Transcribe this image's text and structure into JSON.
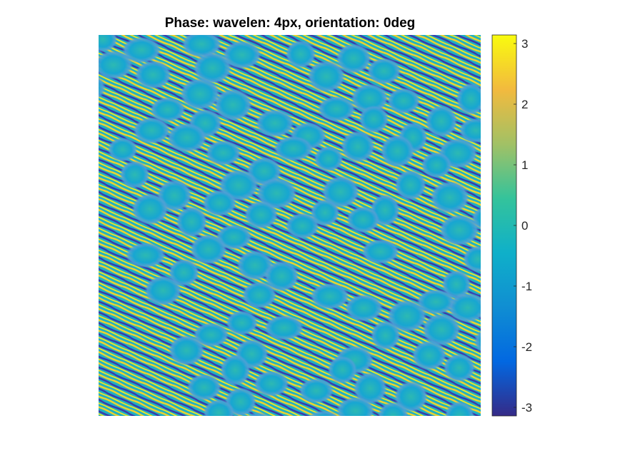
{
  "chart_data": {
    "type": "heatmap",
    "title": "Phase: wavelen: 4px, orientation: 0deg",
    "xlabel": "",
    "ylabel": "",
    "colorbar": {
      "colormap": "parula",
      "range": [
        -3.1416,
        3.1416
      ],
      "ticks": [
        3,
        2,
        1,
        0,
        -1,
        -2,
        -3
      ],
      "tick_labels": [
        "3",
        "2",
        "1",
        "0",
        "-1",
        "-2",
        "-3"
      ],
      "colors": [
        "#352a87",
        "#0268e1",
        "#108ed2",
        "#0fb0c9",
        "#34c39b",
        "#a2c165",
        "#f2ba3e",
        "#f9fb0e"
      ]
    },
    "axes_visible": false,
    "grid": false
  }
}
